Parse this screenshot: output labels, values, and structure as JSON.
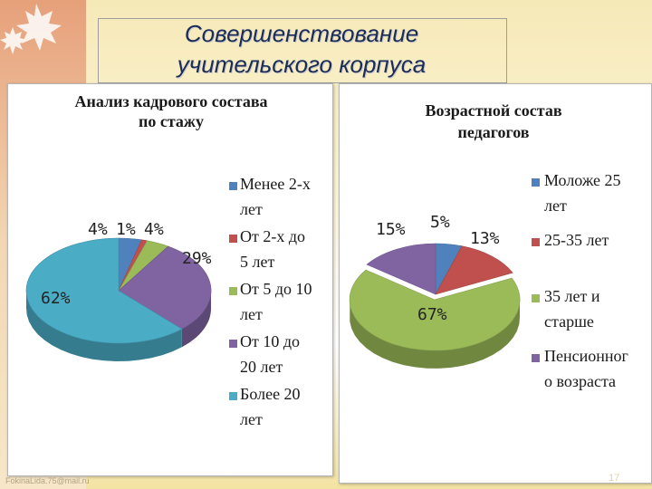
{
  "slide": {
    "title_line1": "Совершенствование",
    "title_line2": "учительского корпуса",
    "footer_url": "FokinaLida.75@mail.ru",
    "page_number": "17"
  },
  "chart_data": [
    {
      "type": "pie",
      "title_line1": "Анализ кадрового состава",
      "title_line2": "по стажу",
      "legend": [
        {
          "line1": "Менее 2-х",
          "line2": "лет"
        },
        {
          "line1": "От 2-х до",
          "line2": "5 лет"
        },
        {
          "line1": "От 5 до 10",
          "line2": "лет"
        },
        {
          "line1": "От 10 до",
          "line2": "20 лет"
        },
        {
          "line1": "Более 20",
          "line2": "лет"
        }
      ],
      "categories": [
        "Менее 2-х лет",
        "От 2-х до 5 лет",
        "От 5 до 10 лет",
        "От 10 до 20 лет",
        "Более 20 лет"
      ],
      "values": [
        4,
        1,
        4,
        29,
        62
      ],
      "labels": [
        "4%",
        "1%",
        "4%",
        "29%",
        "62%"
      ],
      "colors": [
        "#4f81bd",
        "#c0504d",
        "#9bbb59",
        "#8064a2",
        "#4bacc6"
      ]
    },
    {
      "type": "pie",
      "title_line1": "Возрастной состав",
      "title_line2": "педагогов",
      "legend": [
        {
          "line1": "Моложе 25",
          "line2": "лет"
        },
        {
          "line1": "25-35 лет",
          "line2": ""
        },
        {
          "line1": "35 лет и",
          "line2": "старше"
        },
        {
          "line1": "Пенсионног",
          "line2": "о возраста"
        }
      ],
      "categories": [
        "Моложе 25 лет",
        "25-35 лет",
        "35 лет и старше",
        "Пенсионного возраста"
      ],
      "values": [
        5,
        13,
        67,
        15
      ],
      "labels": [
        "5%",
        "13%",
        "67%",
        "15%"
      ],
      "colors": [
        "#4f81bd",
        "#c0504d",
        "#9bbb59",
        "#8064a2"
      ]
    }
  ]
}
